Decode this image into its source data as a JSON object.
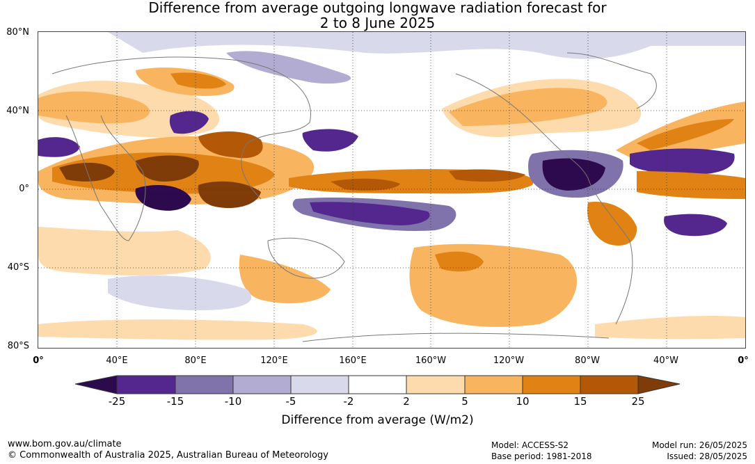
{
  "title": {
    "line1": "Difference from average outgoing longwave radiation forecast for",
    "line2": "2 to 8 June 2025"
  },
  "map": {
    "lat_labels": [
      "80°N",
      "40°N",
      "0°",
      "40°S",
      "80°S"
    ],
    "lon_labels": [
      "0°",
      "40°E",
      "80°E",
      "120°E",
      "160°E",
      "160°W",
      "120°W",
      "80°W",
      "40°W",
      "0°"
    ]
  },
  "colorbar": {
    "title": "Difference from average (W/m2)",
    "ticks": [
      "-25",
      "-15",
      "-10",
      "-5",
      "-2",
      "2",
      "5",
      "10",
      "15",
      "25"
    ],
    "colors": [
      "#2d0a4e",
      "#54278f",
      "#8073ac",
      "#b2abd2",
      "#d8daeb",
      "#ffffff",
      "#fddbac",
      "#f9b460",
      "#e08214",
      "#b35806",
      "#7f3b08"
    ]
  },
  "footer": {
    "website": "www.bom.gov.au/climate",
    "copyright": "© Commonwealth of Australia 2025, Australian Bureau of Meteorology",
    "model": "Model: ACCESS-S2",
    "base_period": "Base period: 1981-2018",
    "model_run": "Model run: 26/05/2025",
    "issued": "Issued: 28/05/2025"
  }
}
